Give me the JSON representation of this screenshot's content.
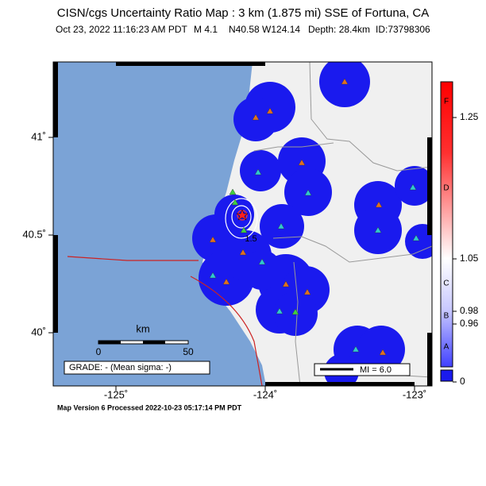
{
  "title": "CISN/cgs Uncertainty Ratio Map : 3 km (1.875 mi) SSE of Fortuna, CA",
  "event": {
    "time": "Oct 23, 2022 11:16:23 AM PDT",
    "magnitude": "M 4.1",
    "location": "N40.58 W124.14",
    "depth": "Depth: 28.4km",
    "id": "ID:73798306"
  },
  "map": {
    "lat_ticks": [
      {
        "value": 41,
        "label": "41˚"
      },
      {
        "value": 40.5,
        "label": "40.5˚"
      },
      {
        "value": 40,
        "label": "40˚"
      }
    ],
    "lon_ticks": [
      {
        "value": -125,
        "label": "-125˚"
      },
      {
        "value": -124,
        "label": "-124˚"
      },
      {
        "value": -123,
        "label": "-123˚"
      }
    ],
    "contour_label": "1.5",
    "scale_bar": {
      "unit": "km",
      "ticks": [
        0,
        50
      ]
    },
    "grade": "GRADE: - (Mean sigma: -)",
    "mi_legend": "MI = 6.0"
  },
  "colorbar": {
    "ticks": [
      1.25,
      1.05,
      0.98,
      0.96,
      0
    ],
    "grades": [
      "F",
      "D",
      "C",
      "B",
      "A"
    ]
  },
  "footer": "Map Version 6 Processed 2022-10-23 05:17:14 PM PDT"
}
